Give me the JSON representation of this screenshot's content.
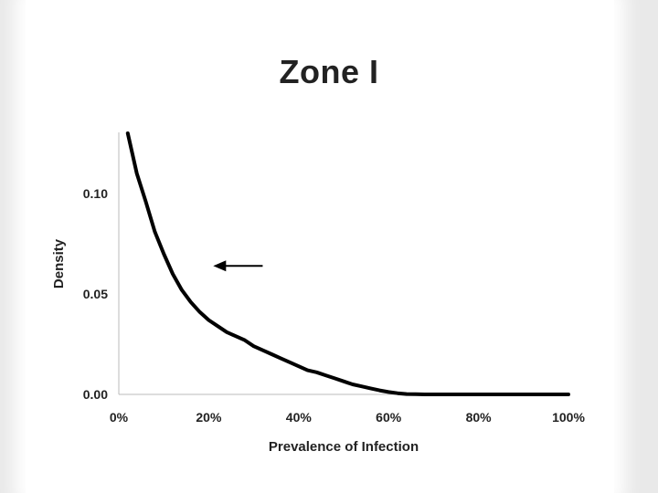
{
  "chart_data": {
    "type": "line",
    "title": "Zone I",
    "xlabel": "Prevalence of Infection",
    "ylabel": "Density",
    "xlim": [
      0,
      100
    ],
    "ylim": [
      0,
      0.13
    ],
    "x_ticks": [
      "0%",
      "20%",
      "40%",
      "60%",
      "80%",
      "100%"
    ],
    "y_ticks": [
      "0.00",
      "0.05",
      "0.10"
    ],
    "y_tick_values": [
      0,
      0.05,
      0.1
    ],
    "x_tick_values": [
      0,
      20,
      40,
      60,
      80,
      100
    ],
    "grid": false,
    "series": [
      {
        "color": "#000000",
        "x": [
          2,
          4,
          6,
          8,
          10,
          12,
          14,
          16,
          18,
          20,
          22,
          24,
          26,
          28,
          30,
          32,
          34,
          36,
          38,
          40,
          42,
          44,
          46,
          48,
          50,
          52,
          54,
          56,
          58,
          60,
          62,
          64,
          66,
          68,
          70,
          75,
          80,
          85,
          90,
          95,
          100
        ],
        "y": [
          0.13,
          0.11,
          0.096,
          0.081,
          0.07,
          0.06,
          0.052,
          0.046,
          0.041,
          0.037,
          0.034,
          0.031,
          0.029,
          0.027,
          0.024,
          0.022,
          0.02,
          0.018,
          0.016,
          0.014,
          0.012,
          0.011,
          0.0095,
          0.008,
          0.0065,
          0.005,
          0.004,
          0.003,
          0.002,
          0.0012,
          0.0006,
          0.0002,
          0.0001,
          0.0,
          0.0,
          0.0,
          0.0,
          0.0,
          0.0,
          0.0,
          0.0
        ]
      }
    ],
    "annotations": [
      {
        "type": "arrow",
        "direction": "left",
        "x_from": 32,
        "x_to": 21,
        "y": 0.064
      }
    ]
  }
}
